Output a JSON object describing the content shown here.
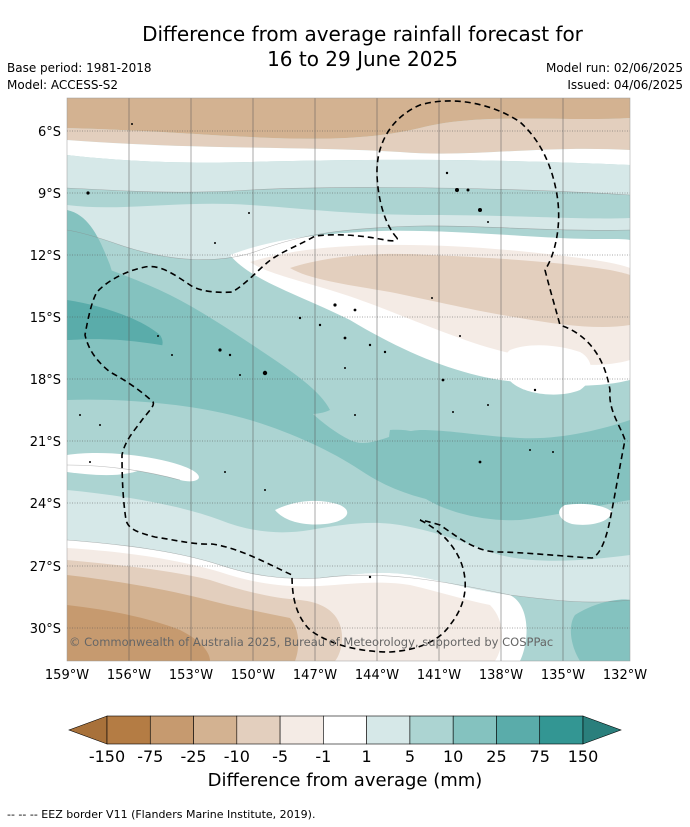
{
  "title_line1": "Difference from average rainfall forecast for",
  "title_line2": "16 to 29 June 2025",
  "base_period": "Base period: 1981-2018",
  "model": "Model: ACCESS-S2",
  "model_run": "Model run: 02/06/2025",
  "issued": "Issued: 04/06/2025",
  "copyright": "© Commonwealth of Australia 2025, Bureau of Meteorology, supported by COSPPac",
  "lat_labels": [
    "6°S",
    "9°S",
    "12°S",
    "15°S",
    "18°S",
    "21°S",
    "24°S",
    "27°S",
    "30°S"
  ],
  "lon_labels": [
    "159°W",
    "156°W",
    "153°W",
    "150°W",
    "147°W",
    "144°W",
    "141°W",
    "138°W",
    "135°W",
    "132°W"
  ],
  "colorbar": {
    "ticks": [
      "-150",
      "-75",
      "-25",
      "-10",
      "-5",
      "-1",
      "1",
      "5",
      "10",
      "25",
      "75",
      "150"
    ],
    "colors": [
      "#a8713a",
      "#b47c44",
      "#c69a6f",
      "#d3b291",
      "#e3cfbe",
      "#f4ebe5",
      "#ffffff",
      "#d6e8e8",
      "#acd4d2",
      "#84c2bf",
      "#5aacaa",
      "#339693",
      "#2a7f7c"
    ],
    "label": "Difference from average (mm)"
  },
  "footnote": "--  --  -- EEZ border V11 (Flanders Marine Institute, 2019)."
}
